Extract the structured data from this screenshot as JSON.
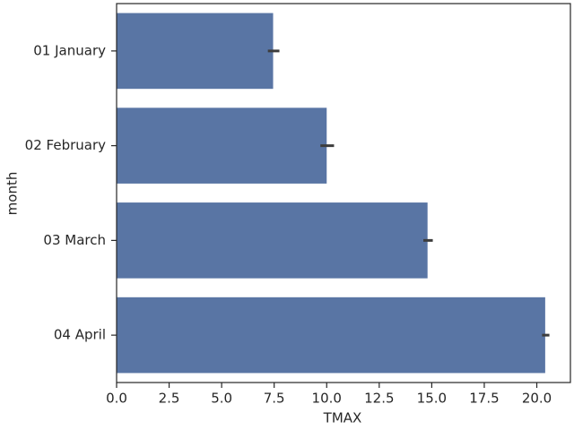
{
  "chart_data": {
    "type": "barh",
    "x_label": "TMAX",
    "y_label": "month",
    "categories": [
      "01 January",
      "02 February",
      "03 March",
      "04 April"
    ],
    "series": [
      {
        "color": "#5975a4",
        "values": [
          7.45,
          10.0,
          14.8,
          20.4
        ],
        "ci_low": [
          7.2,
          9.7,
          14.6,
          20.25
        ],
        "ci_high": [
          7.75,
          10.35,
          15.05,
          20.6
        ]
      }
    ],
    "xlim": [
      0,
      21.6
    ],
    "xticks": [
      {
        "value": 0,
        "label": "0.0"
      },
      {
        "value": 2.5,
        "label": "2.5"
      },
      {
        "value": 5,
        "label": "5.0"
      },
      {
        "value": 7.5,
        "label": "7.5"
      },
      {
        "value": 10,
        "label": "10.0"
      },
      {
        "value": 12.5,
        "label": "12.5"
      },
      {
        "value": 15,
        "label": "15.0"
      },
      {
        "value": 17.5,
        "label": "17.5"
      },
      {
        "value": 20,
        "label": "20.0"
      }
    ],
    "grid": false
  }
}
